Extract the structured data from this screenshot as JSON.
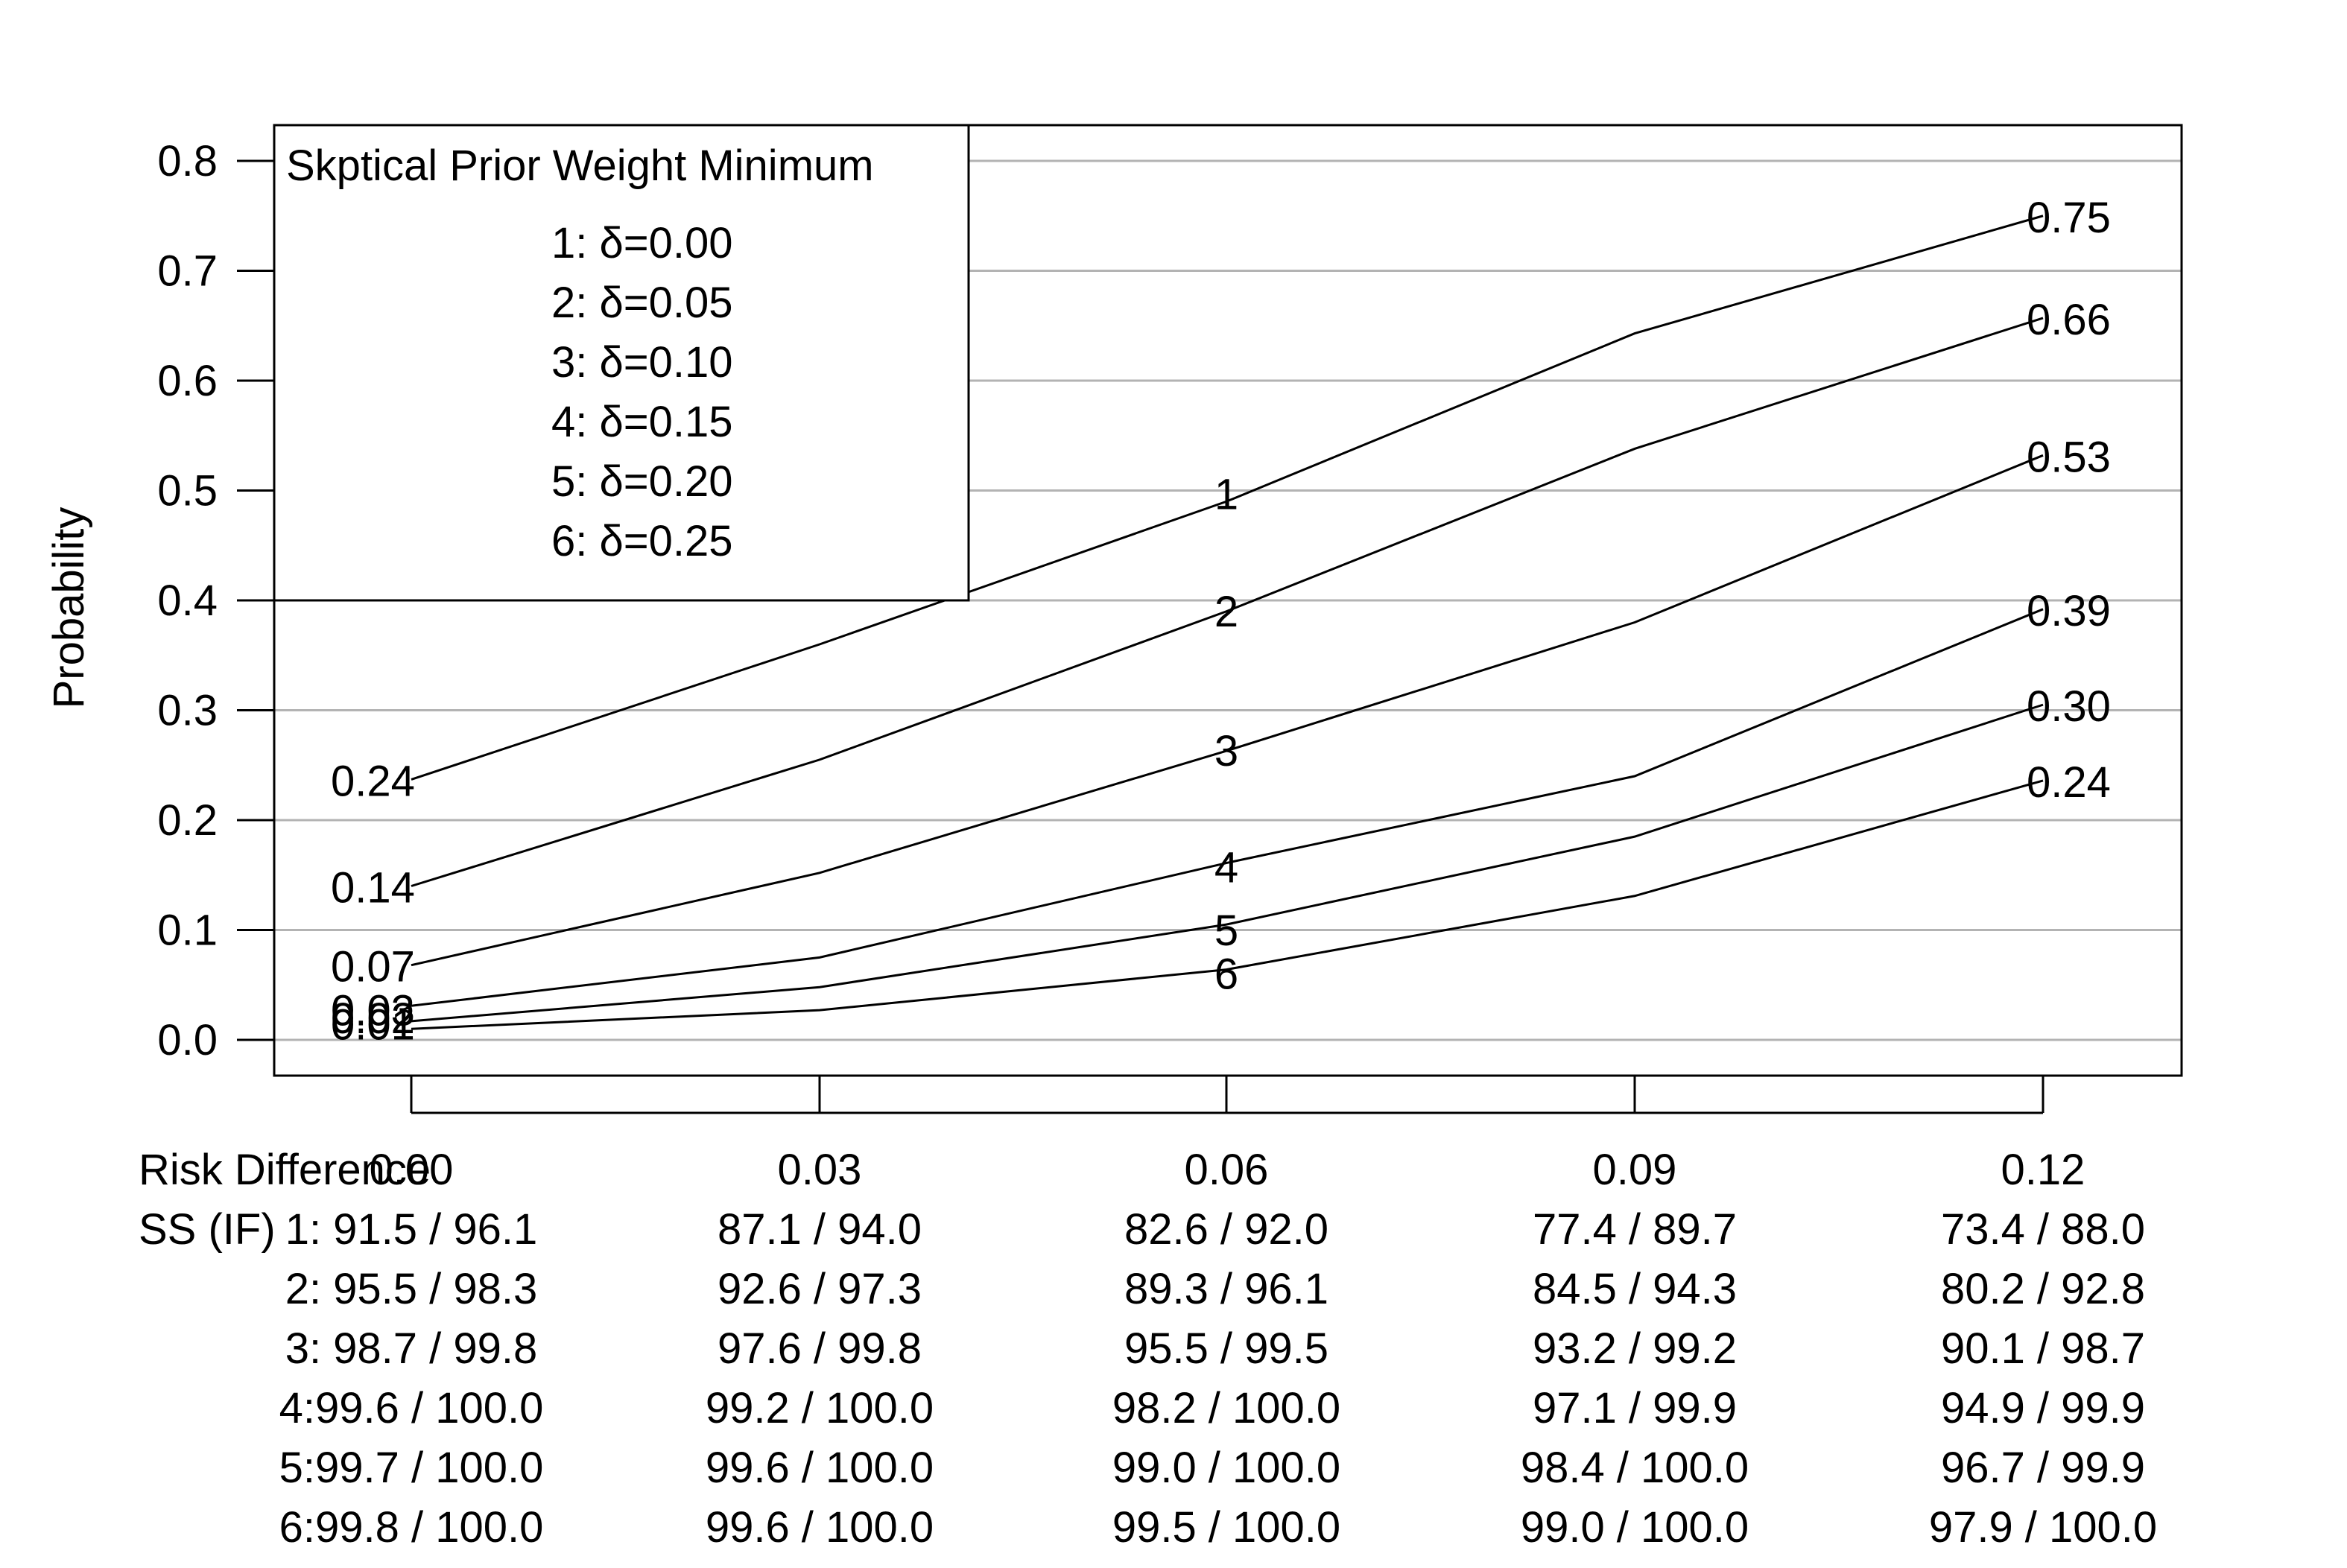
{
  "chart_data": {
    "type": "line",
    "ylabel": "Probability",
    "ylim": [
      0.0,
      0.8
    ],
    "yticks": [
      "0.0",
      "0.1",
      "0.2",
      "0.3",
      "0.4",
      "0.5",
      "0.6",
      "0.7",
      "0.8"
    ],
    "grid": "horizontal",
    "x": [
      0.0,
      0.03,
      0.06,
      0.09,
      0.12
    ],
    "xtick_labels": [
      "0.00",
      "0.03",
      "0.06",
      "0.09",
      "0.12"
    ],
    "legend": {
      "position": "top-left",
      "title": "Skptical Prior Weight Minimum",
      "entries": [
        "1: δ=0.00",
        "2: δ=0.05",
        "3: δ=0.10",
        "4: δ=0.15",
        "5: δ=0.20",
        "6: δ=0.25"
      ]
    },
    "series": [
      {
        "label": "1",
        "values": [
          0.237,
          0.36,
          0.49,
          0.643,
          0.75
        ],
        "start_label": "0.24",
        "end_label": "0.75"
      },
      {
        "label": "2",
        "values": [
          0.14,
          0.255,
          0.39,
          0.538,
          0.657
        ],
        "start_label": "0.14",
        "end_label": "0.66"
      },
      {
        "label": "3",
        "values": [
          0.068,
          0.152,
          0.263,
          0.38,
          0.532
        ],
        "start_label": "0.07",
        "end_label": "0.53"
      },
      {
        "label": "4",
        "values": [
          0.031,
          0.075,
          0.161,
          0.24,
          0.392
        ],
        "start_label": "0.03",
        "end_label": "0.39"
      },
      {
        "label": "5",
        "values": [
          0.017,
          0.048,
          0.105,
          0.185,
          0.305
        ],
        "start_label": "0.02",
        "end_label": "0.30"
      },
      {
        "label": "6",
        "values": [
          0.01,
          0.027,
          0.064,
          0.131,
          0.236
        ],
        "start_label": "0.01",
        "end_label": "0.24"
      }
    ],
    "table": {
      "row_header": "Risk Difference",
      "ss_header": "SS (IF)",
      "rows": [
        [
          "1: 91.5 / 96.1",
          "87.1 / 94.0",
          "82.6 / 92.0",
          "77.4 / 89.7",
          "73.4 / 88.0"
        ],
        [
          "2: 95.5 / 98.3",
          "92.6 / 97.3",
          "89.3 / 96.1",
          "84.5 / 94.3",
          "80.2 / 92.8"
        ],
        [
          "3: 98.7 / 99.8",
          "97.6 / 99.8",
          "95.5 / 99.5",
          "93.2 / 99.2",
          "90.1 / 98.7"
        ],
        [
          "4:99.6 / 100.0",
          "99.2 / 100.0",
          "98.2 / 100.0",
          "97.1 / 99.9",
          "94.9 / 99.9"
        ],
        [
          "5:99.7 / 100.0",
          "99.6 / 100.0",
          "99.0 / 100.0",
          "98.4 / 100.0",
          "96.7 / 99.9"
        ],
        [
          "6:99.8 / 100.0",
          "99.6 / 100.0",
          "99.5 / 100.0",
          "99.0 / 100.0",
          "97.9 / 100.0"
        ]
      ]
    }
  }
}
